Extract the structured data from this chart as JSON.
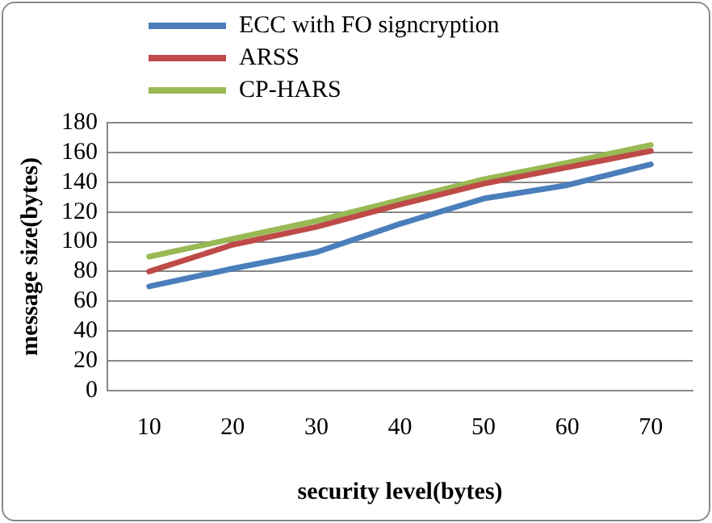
{
  "chart_data": {
    "type": "line",
    "xlabel": "security level(bytes)",
    "ylabel": "message size(bytes)",
    "categories": [
      "10",
      "20",
      "30",
      "40",
      "50",
      "60",
      "70"
    ],
    "series": [
      {
        "name": "ECC with FO signcryption",
        "color": "#4a7ebb",
        "values": [
          70,
          82,
          93,
          112,
          129,
          138,
          152
        ]
      },
      {
        "name": "ARSS",
        "color": "#be4b48",
        "values": [
          80,
          98,
          110,
          125,
          139,
          150,
          161
        ]
      },
      {
        "name": "CP-HARS",
        "color": "#98b954",
        "values": [
          90,
          102,
          114,
          128,
          142,
          153,
          165
        ]
      }
    ],
    "ylim": [
      0,
      180
    ],
    "yticks": [
      0,
      20,
      40,
      60,
      80,
      100,
      120,
      140,
      160,
      180
    ],
    "grid": "y",
    "legend": "top",
    "marker": "none"
  }
}
